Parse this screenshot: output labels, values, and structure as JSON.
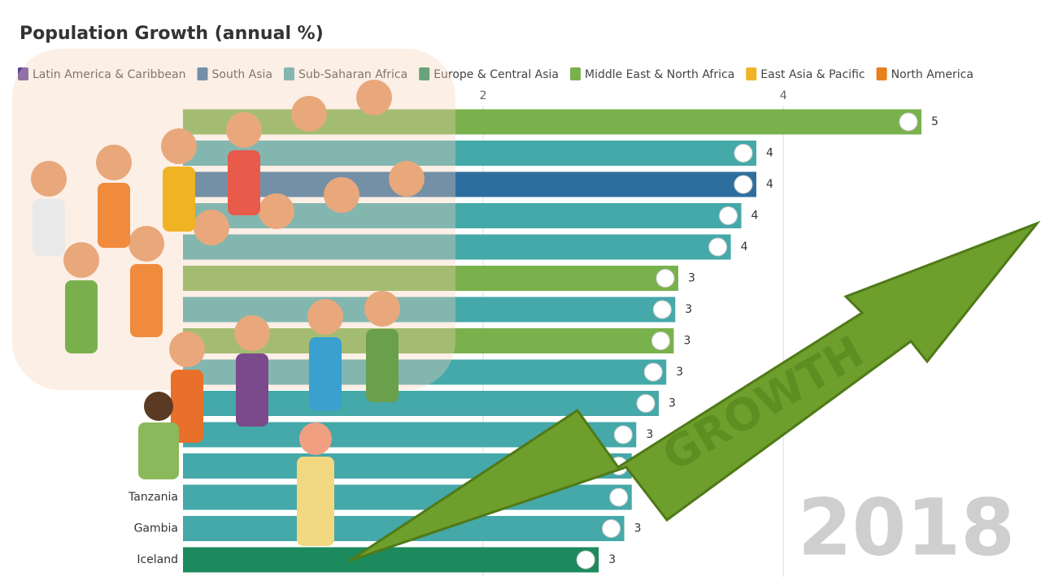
{
  "chart_data": {
    "type": "bar",
    "orientation": "horizontal",
    "title": "Population Growth (annual %)",
    "period": "2018",
    "annotation": "GROWTH",
    "series": [
      {
        "name": "Latin America & Caribbean",
        "color": "#5b3f9a"
      },
      {
        "name": "South Asia",
        "color": "#2e6e9e"
      },
      {
        "name": "Sub-Saharan Africa",
        "color": "#45a8a9"
      },
      {
        "name": "Europe & Central Asia",
        "color": "#1c8a5c"
      },
      {
        "name": "Middle East & North Africa",
        "color": "#79b14c"
      },
      {
        "name": "East Asia & Pacific",
        "color": "#f0b323"
      },
      {
        "name": "North America",
        "color": "#e8801c"
      }
    ],
    "categories": [
      null,
      null,
      null,
      null,
      null,
      null,
      null,
      null,
      null,
      null,
      null,
      null,
      "Tanzania",
      "Gambia",
      "Iceland"
    ],
    "groups": [
      4,
      2,
      1,
      2,
      2,
      4,
      2,
      4,
      2,
      2,
      2,
      2,
      2,
      2,
      3
    ],
    "values": [
      4.92,
      3.82,
      3.82,
      3.72,
      3.65,
      3.3,
      3.28,
      3.27,
      3.22,
      3.17,
      3.02,
      2.99,
      2.99,
      2.94,
      2.77
    ],
    "value_labels": [
      "5",
      "4",
      "4",
      "4",
      "4",
      "3",
      "3",
      "3",
      "3",
      "3",
      "3",
      null,
      null,
      "3",
      "3"
    ],
    "xlim": [
      0,
      5.5
    ],
    "xticks": [
      2,
      4
    ],
    "grid": true
  }
}
